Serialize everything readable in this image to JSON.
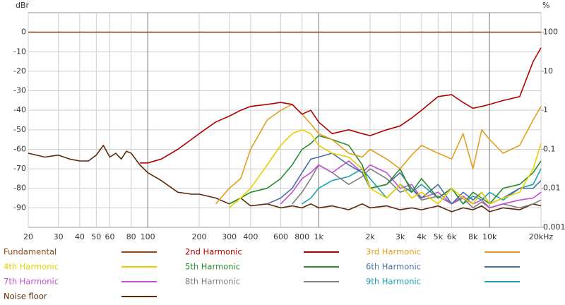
{
  "chart_data": {
    "type": "line",
    "y_label": "dBr",
    "y2_label": "%",
    "xlog": true,
    "y2log": true,
    "grid": true,
    "legend": "bottom",
    "xlim": [
      20,
      20000
    ],
    "ylim": [
      -100,
      10
    ],
    "y2lim": [
      0.001,
      316.23
    ],
    "xticks": [
      20,
      30,
      40,
      50,
      60,
      80,
      100,
      200,
      300,
      400,
      600,
      800,
      {
        "value": 1000,
        "label": "1k"
      },
      {
        "value": 2000,
        "label": "2k"
      },
      {
        "value": 3000,
        "label": "3k"
      },
      {
        "value": 4000,
        "label": "4k"
      },
      {
        "value": 5000,
        "label": "5k"
      },
      {
        "value": 6000,
        "label": "6k"
      },
      {
        "value": 8000,
        "label": "8k"
      },
      {
        "value": 10000,
        "label": "10k"
      },
      {
        "value": 20000,
        "label": "20kHz"
      }
    ],
    "yticks": [
      0,
      -10,
      -20,
      -30,
      -40,
      -50,
      -60,
      -70,
      -80,
      -90
    ],
    "y2ticks": [
      100,
      10,
      1,
      {
        "value": 0.1,
        "label": "0,1"
      },
      {
        "value": 0.01,
        "label": "0,01"
      },
      {
        "value": 0.001,
        "label": "0,001"
      }
    ],
    "x": [
      20,
      25,
      30,
      35,
      40,
      45,
      50,
      55,
      60,
      65,
      70,
      75,
      80,
      90,
      100,
      120,
      150,
      180,
      200,
      250,
      300,
      350,
      400,
      500,
      600,
      700,
      800,
      900,
      1000,
      1200,
      1500,
      1800,
      2000,
      2500,
      3000,
      3500,
      4000,
      5000,
      6000,
      7000,
      8000,
      9000,
      10000,
      12000,
      15000,
      18000,
      20000
    ],
    "series": [
      {
        "name": "Fundamental",
        "color": "#8b4a1c",
        "values": [
          0,
          0,
          0,
          0,
          0,
          0,
          0,
          0,
          0,
          0,
          0,
          0,
          0,
          0,
          0,
          0,
          0,
          0,
          0,
          0,
          0,
          0,
          0,
          0,
          0,
          0,
          0,
          0,
          0,
          0,
          0,
          0,
          0,
          0,
          0,
          0,
          0,
          0,
          0,
          0,
          0,
          0,
          0,
          0,
          0,
          0,
          0
        ]
      },
      {
        "name": "2nd Harmonic",
        "color": "#b00000",
        "values": [
          null,
          null,
          null,
          null,
          null,
          null,
          null,
          null,
          null,
          null,
          null,
          null,
          null,
          -67,
          -67,
          -65,
          -60,
          -55,
          -52,
          -46,
          -43,
          -40,
          -38,
          -37,
          -36,
          -37,
          -42,
          -40,
          -46,
          -52,
          -50,
          -52,
          -53,
          -50,
          -48,
          -44,
          -40,
          -33,
          -32,
          -36,
          -39,
          -38,
          -37,
          -35,
          -33,
          -15,
          -8
        ]
      },
      {
        "name": "3rd Harmonic",
        "color": "#e0a020",
        "values": [
          null,
          null,
          null,
          null,
          null,
          null,
          null,
          null,
          null,
          null,
          null,
          null,
          null,
          null,
          null,
          null,
          null,
          null,
          null,
          -88,
          -80,
          -75,
          -60,
          -45,
          -40,
          -37,
          -42,
          -47,
          -52,
          -55,
          -62,
          -64,
          -60,
          -65,
          -70,
          -63,
          -58,
          -62,
          -65,
          -52,
          -70,
          -50,
          -55,
          -62,
          -58,
          -45,
          -38
        ]
      },
      {
        "name": "4th Harmonic",
        "color": "#e6d000",
        "values": [
          null,
          null,
          null,
          null,
          null,
          null,
          null,
          null,
          null,
          null,
          null,
          null,
          null,
          null,
          null,
          null,
          null,
          null,
          null,
          null,
          -90,
          -85,
          -80,
          -68,
          -58,
          -52,
          -50,
          -52,
          -58,
          -62,
          -64,
          -70,
          -80,
          -85,
          -78,
          -85,
          -82,
          -88,
          -80,
          -85,
          -88,
          -82,
          -88,
          -85,
          -82,
          -70,
          -57
        ]
      },
      {
        "name": "5th Harmonic",
        "color": "#2e8b2e",
        "values": [
          null,
          null,
          null,
          null,
          null,
          null,
          null,
          null,
          null,
          null,
          null,
          null,
          null,
          null,
          null,
          null,
          null,
          null,
          null,
          null,
          -88,
          -85,
          -82,
          -80,
          -75,
          -68,
          -60,
          -57,
          -53,
          -55,
          -58,
          -68,
          -80,
          -78,
          -70,
          -82,
          -75,
          -85,
          -80,
          -88,
          -82,
          -85,
          -88,
          -80,
          -78,
          -72,
          -66
        ]
      },
      {
        "name": "6th Harmonic",
        "color": "#4a6fa5",
        "values": [
          null,
          null,
          null,
          null,
          null,
          null,
          null,
          null,
          null,
          null,
          null,
          null,
          null,
          null,
          null,
          null,
          null,
          null,
          null,
          null,
          null,
          null,
          null,
          -88,
          -85,
          -80,
          -72,
          -65,
          -64,
          -62,
          -68,
          -72,
          -80,
          -78,
          -72,
          -80,
          -85,
          -78,
          -88,
          -82,
          -86,
          -82,
          -88,
          -85,
          -80,
          -80,
          -76
        ]
      },
      {
        "name": "7th Harmonic",
        "color": "#c050d0",
        "values": [
          null,
          null,
          null,
          null,
          null,
          null,
          null,
          null,
          null,
          null,
          null,
          null,
          null,
          null,
          null,
          null,
          null,
          null,
          null,
          null,
          null,
          null,
          null,
          null,
          -88,
          -82,
          -75,
          -72,
          -68,
          -72,
          -66,
          -72,
          -68,
          -72,
          -80,
          -78,
          -85,
          -82,
          -88,
          -84,
          -88,
          -86,
          -90,
          -88,
          -86,
          -85,
          -82
        ]
      },
      {
        "name": "8th Harmonic",
        "color": "#808080",
        "values": [
          null,
          null,
          null,
          null,
          null,
          null,
          null,
          null,
          null,
          null,
          null,
          null,
          null,
          null,
          null,
          null,
          null,
          null,
          null,
          null,
          null,
          null,
          null,
          null,
          null,
          -88,
          -82,
          -75,
          -68,
          -72,
          -78,
          -74,
          -70,
          -75,
          -82,
          -80,
          -86,
          -84,
          -88,
          -85,
          -90,
          -87,
          -90,
          -88,
          -90,
          -88,
          -86
        ]
      },
      {
        "name": "9th Harmonic",
        "color": "#20a0b0",
        "values": [
          null,
          null,
          null,
          null,
          null,
          null,
          null,
          null,
          null,
          null,
          null,
          null,
          null,
          null,
          null,
          null,
          null,
          null,
          null,
          null,
          null,
          null,
          null,
          null,
          null,
          null,
          -88,
          -85,
          -80,
          -76,
          -74,
          -70,
          -75,
          -85,
          -78,
          -82,
          -78,
          -85,
          -80,
          -88,
          -84,
          -86,
          -82,
          -86,
          -80,
          -78,
          -70
        ]
      },
      {
        "name": "Noise floor",
        "color": "#5a2a0a",
        "values": [
          -62,
          -64,
          -63,
          -65,
          -66,
          -66,
          -63,
          -58,
          -64,
          -62,
          -65,
          -61,
          -62,
          -68,
          -72,
          -76,
          -82,
          -83,
          -83,
          -85,
          -88,
          -85,
          -89,
          -88,
          -90,
          -89,
          -90,
          -88,
          -90,
          -89,
          -91,
          -88,
          -90,
          -89,
          -91,
          -90,
          -91,
          -89,
          -92,
          -90,
          -91,
          -89,
          -92,
          -90,
          -91,
          -88,
          -89
        ]
      }
    ]
  }
}
